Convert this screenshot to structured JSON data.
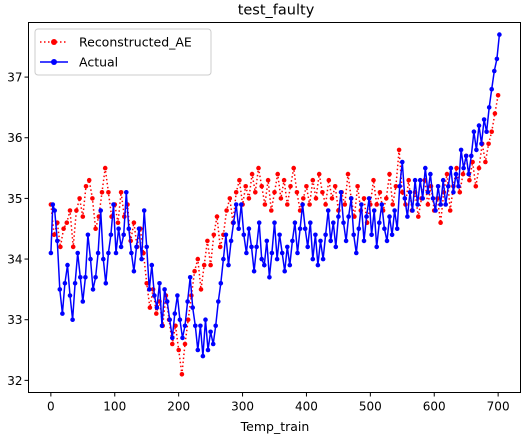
{
  "chart_data": {
    "type": "line",
    "title": "test_faulty",
    "xlabel": "Temp_train",
    "ylabel": "",
    "xlim": [
      -35,
      735
    ],
    "ylim": [
      31.8,
      37.9
    ],
    "xticks": [
      0,
      100,
      200,
      300,
      400,
      500,
      600,
      700
    ],
    "yticks": [
      32,
      33,
      34,
      35,
      36,
      37
    ],
    "grid": false,
    "legend_position": "upper-left",
    "series": [
      {
        "name": "Reconstructed_AE",
        "color": "#ff0000",
        "linestyle": "dotted",
        "marker": "circle",
        "keypoints": [
          [
            0,
            34.9
          ],
          [
            5,
            34.4
          ],
          [
            10,
            34.6
          ],
          [
            15,
            34.2
          ],
          [
            20,
            34.5
          ],
          [
            25,
            34.6
          ],
          [
            30,
            34.8
          ],
          [
            35,
            34.2
          ],
          [
            40,
            34.8
          ],
          [
            45,
            35.0
          ],
          [
            50,
            34.7
          ],
          [
            55,
            35.2
          ],
          [
            60,
            35.3
          ],
          [
            65,
            35.0
          ],
          [
            70,
            34.5
          ],
          [
            75,
            34.7
          ],
          [
            80,
            35.1
          ],
          [
            85,
            35.5
          ],
          [
            90,
            35.1
          ],
          [
            95,
            34.7
          ],
          [
            100,
            34.9
          ],
          [
            105,
            34.6
          ],
          [
            110,
            35.1
          ],
          [
            115,
            34.7
          ],
          [
            120,
            34.9
          ],
          [
            125,
            34.3
          ],
          [
            130,
            34.6
          ],
          [
            135,
            34.2
          ],
          [
            140,
            34.5
          ],
          [
            145,
            34.1
          ],
          [
            150,
            33.6
          ],
          [
            155,
            33.2
          ],
          [
            160,
            33.5
          ],
          [
            165,
            33.1
          ],
          [
            170,
            33.3
          ],
          [
            175,
            32.9
          ],
          [
            180,
            33.4
          ],
          [
            185,
            33.0
          ],
          [
            190,
            32.6
          ],
          [
            195,
            32.9
          ],
          [
            200,
            32.5
          ],
          [
            205,
            32.1
          ],
          [
            210,
            32.6
          ],
          [
            215,
            33.0
          ],
          [
            220,
            33.4
          ],
          [
            225,
            33.8
          ],
          [
            230,
            34.0
          ],
          [
            235,
            33.5
          ],
          [
            240,
            33.9
          ],
          [
            245,
            34.3
          ],
          [
            250,
            33.9
          ],
          [
            255,
            34.4
          ],
          [
            260,
            34.7
          ],
          [
            265,
            34.2
          ],
          [
            270,
            34.4
          ],
          [
            275,
            34.8
          ],
          [
            280,
            35.0
          ],
          [
            285,
            34.6
          ],
          [
            290,
            35.1
          ],
          [
            295,
            35.3
          ],
          [
            300,
            34.9
          ],
          [
            305,
            35.2
          ],
          [
            310,
            35.0
          ],
          [
            315,
            35.4
          ],
          [
            320,
            35.1
          ],
          [
            325,
            35.5
          ],
          [
            330,
            35.2
          ],
          [
            335,
            34.9
          ],
          [
            340,
            35.3
          ],
          [
            345,
            34.8
          ],
          [
            350,
            35.1
          ],
          [
            355,
            35.4
          ],
          [
            360,
            35.0
          ],
          [
            365,
            35.3
          ],
          [
            370,
            34.9
          ],
          [
            375,
            35.2
          ],
          [
            380,
            35.5
          ],
          [
            385,
            35.1
          ],
          [
            390,
            34.8
          ],
          [
            395,
            35.0
          ],
          [
            400,
            35.2
          ],
          [
            405,
            34.9
          ],
          [
            410,
            35.3
          ],
          [
            415,
            35.0
          ],
          [
            420,
            35.4
          ],
          [
            425,
            35.1
          ],
          [
            430,
            34.9
          ],
          [
            435,
            35.3
          ],
          [
            440,
            35.0
          ],
          [
            445,
            35.2
          ],
          [
            450,
            34.8
          ],
          [
            455,
            35.1
          ],
          [
            460,
            34.9
          ],
          [
            465,
            35.4
          ],
          [
            470,
            35.0
          ],
          [
            475,
            34.7
          ],
          [
            480,
            35.2
          ],
          [
            485,
            34.8
          ],
          [
            490,
            35.0
          ],
          [
            495,
            34.6
          ],
          [
            500,
            34.9
          ],
          [
            505,
            35.3
          ],
          [
            510,
            34.9
          ],
          [
            515,
            35.1
          ],
          [
            520,
            34.8
          ],
          [
            525,
            35.0
          ],
          [
            530,
            35.4
          ],
          [
            535,
            34.9
          ],
          [
            540,
            35.2
          ],
          [
            545,
            35.8
          ],
          [
            550,
            35.1
          ],
          [
            555,
            34.9
          ],
          [
            560,
            35.3
          ],
          [
            565,
            34.8
          ],
          [
            570,
            35.1
          ],
          [
            575,
            34.7
          ],
          [
            580,
            35.0
          ],
          [
            585,
            35.3
          ],
          [
            590,
            34.9
          ],
          [
            595,
            35.2
          ],
          [
            600,
            34.8
          ],
          [
            605,
            35.0
          ],
          [
            610,
            34.6
          ],
          [
            615,
            35.1
          ],
          [
            620,
            35.4
          ],
          [
            625,
            34.8
          ],
          [
            630,
            35.2
          ],
          [
            635,
            35.5
          ],
          [
            640,
            35.1
          ],
          [
            645,
            35.4
          ],
          [
            650,
            35.7
          ],
          [
            655,
            35.3
          ],
          [
            660,
            35.6
          ],
          [
            665,
            35.2
          ],
          [
            670,
            35.5
          ],
          [
            675,
            35.9
          ],
          [
            680,
            35.6
          ],
          [
            685,
            35.9
          ],
          [
            690,
            36.1
          ],
          [
            695,
            36.4
          ],
          [
            700,
            36.7
          ]
        ]
      },
      {
        "name": "Actual",
        "color": "#0000ff",
        "linestyle": "solid",
        "marker": "circle",
        "keypoints": [
          [
            0,
            34.1
          ],
          [
            3,
            34.9
          ],
          [
            6,
            34.8
          ],
          [
            10,
            34.3
          ],
          [
            14,
            33.5
          ],
          [
            18,
            33.1
          ],
          [
            22,
            33.6
          ],
          [
            26,
            33.9
          ],
          [
            30,
            33.4
          ],
          [
            34,
            33.0
          ],
          [
            38,
            33.6
          ],
          [
            42,
            34.1
          ],
          [
            46,
            33.7
          ],
          [
            50,
            33.3
          ],
          [
            54,
            33.7
          ],
          [
            58,
            34.4
          ],
          [
            62,
            34.0
          ],
          [
            66,
            33.5
          ],
          [
            70,
            33.7
          ],
          [
            74,
            34.1
          ],
          [
            78,
            34.8
          ],
          [
            82,
            34.0
          ],
          [
            86,
            33.6
          ],
          [
            90,
            34.1
          ],
          [
            94,
            34.4
          ],
          [
            98,
            34.9
          ],
          [
            102,
            34.1
          ],
          [
            106,
            34.5
          ],
          [
            110,
            34.2
          ],
          [
            114,
            34.4
          ],
          [
            118,
            35.1
          ],
          [
            122,
            34.5
          ],
          [
            126,
            34.1
          ],
          [
            130,
            33.8
          ],
          [
            134,
            34.2
          ],
          [
            138,
            34.5
          ],
          [
            142,
            34.0
          ],
          [
            146,
            34.8
          ],
          [
            150,
            34.2
          ],
          [
            154,
            33.5
          ],
          [
            158,
            33.9
          ],
          [
            162,
            33.4
          ],
          [
            166,
            33.2
          ],
          [
            170,
            33.6
          ],
          [
            174,
            32.9
          ],
          [
            178,
            33.5
          ],
          [
            182,
            33.3
          ],
          [
            186,
            33.0
          ],
          [
            190,
            32.7
          ],
          [
            194,
            33.1
          ],
          [
            198,
            33.4
          ],
          [
            202,
            33.0
          ],
          [
            206,
            32.7
          ],
          [
            210,
            32.9
          ],
          [
            214,
            33.3
          ],
          [
            218,
            33.7
          ],
          [
            222,
            33.2
          ],
          [
            226,
            32.9
          ],
          [
            230,
            32.5
          ],
          [
            234,
            32.9
          ],
          [
            238,
            32.4
          ],
          [
            242,
            33.0
          ],
          [
            246,
            32.5
          ],
          [
            250,
            32.8
          ],
          [
            254,
            32.6
          ],
          [
            258,
            32.9
          ],
          [
            262,
            33.3
          ],
          [
            266,
            33.6
          ],
          [
            270,
            34.0
          ],
          [
            274,
            34.4
          ],
          [
            278,
            33.9
          ],
          [
            282,
            34.3
          ],
          [
            286,
            34.6
          ],
          [
            290,
            34.9
          ],
          [
            294,
            34.5
          ],
          [
            298,
            34.9
          ],
          [
            302,
            34.4
          ],
          [
            306,
            34.1
          ],
          [
            310,
            34.5
          ],
          [
            314,
            34.2
          ],
          [
            318,
            33.8
          ],
          [
            322,
            34.2
          ],
          [
            326,
            34.6
          ],
          [
            330,
            34.0
          ],
          [
            334,
            33.9
          ],
          [
            338,
            34.3
          ],
          [
            342,
            33.7
          ],
          [
            346,
            34.1
          ],
          [
            350,
            34.6
          ],
          [
            354,
            34.0
          ],
          [
            358,
            34.4
          ],
          [
            362,
            34.1
          ],
          [
            366,
            33.8
          ],
          [
            370,
            34.2
          ],
          [
            374,
            33.9
          ],
          [
            378,
            34.3
          ],
          [
            382,
            34.6
          ],
          [
            386,
            34.1
          ],
          [
            390,
            34.5
          ],
          [
            394,
            34.9
          ],
          [
            398,
            34.5
          ],
          [
            402,
            34.2
          ],
          [
            406,
            34.6
          ],
          [
            410,
            34.0
          ],
          [
            414,
            34.4
          ],
          [
            418,
            33.9
          ],
          [
            422,
            34.3
          ],
          [
            426,
            34.0
          ],
          [
            430,
            34.4
          ],
          [
            434,
            34.8
          ],
          [
            438,
            34.3
          ],
          [
            442,
            34.6
          ],
          [
            446,
            34.2
          ],
          [
            450,
            34.7
          ],
          [
            454,
            35.1
          ],
          [
            458,
            34.6
          ],
          [
            462,
            34.3
          ],
          [
            466,
            34.7
          ],
          [
            470,
            35.0
          ],
          [
            474,
            34.4
          ],
          [
            478,
            34.1
          ],
          [
            482,
            34.5
          ],
          [
            486,
            34.9
          ],
          [
            490,
            34.3
          ],
          [
            494,
            34.7
          ],
          [
            498,
            35.0
          ],
          [
            502,
            34.4
          ],
          [
            506,
            34.8
          ],
          [
            510,
            34.2
          ],
          [
            514,
            34.6
          ],
          [
            518,
            34.9
          ],
          [
            522,
            34.5
          ],
          [
            526,
            34.3
          ],
          [
            530,
            34.7
          ],
          [
            534,
            34.4
          ],
          [
            538,
            34.8
          ],
          [
            542,
            34.5
          ],
          [
            546,
            35.2
          ],
          [
            550,
            35.6
          ],
          [
            554,
            35.0
          ],
          [
            558,
            34.7
          ],
          [
            562,
            35.1
          ],
          [
            566,
            34.8
          ],
          [
            570,
            35.3
          ],
          [
            574,
            34.9
          ],
          [
            578,
            35.3
          ],
          [
            582,
            35.0
          ],
          [
            586,
            35.5
          ],
          [
            590,
            35.1
          ],
          [
            594,
            35.4
          ],
          [
            598,
            35.0
          ],
          [
            602,
            34.8
          ],
          [
            606,
            35.2
          ],
          [
            610,
            34.9
          ],
          [
            614,
            35.3
          ],
          [
            618,
            34.9
          ],
          [
            622,
            35.2
          ],
          [
            626,
            35.5
          ],
          [
            630,
            35.1
          ],
          [
            634,
            35.4
          ],
          [
            638,
            35.2
          ],
          [
            642,
            35.8
          ],
          [
            646,
            35.5
          ],
          [
            650,
            35.7
          ],
          [
            654,
            35.4
          ],
          [
            658,
            35.7
          ],
          [
            662,
            36.1
          ],
          [
            666,
            35.8
          ],
          [
            670,
            36.2
          ],
          [
            674,
            35.9
          ],
          [
            678,
            36.3
          ],
          [
            682,
            36.1
          ],
          [
            686,
            36.5
          ],
          [
            690,
            36.8
          ],
          [
            694,
            37.1
          ],
          [
            698,
            37.3
          ],
          [
            702,
            37.7
          ]
        ]
      }
    ]
  }
}
